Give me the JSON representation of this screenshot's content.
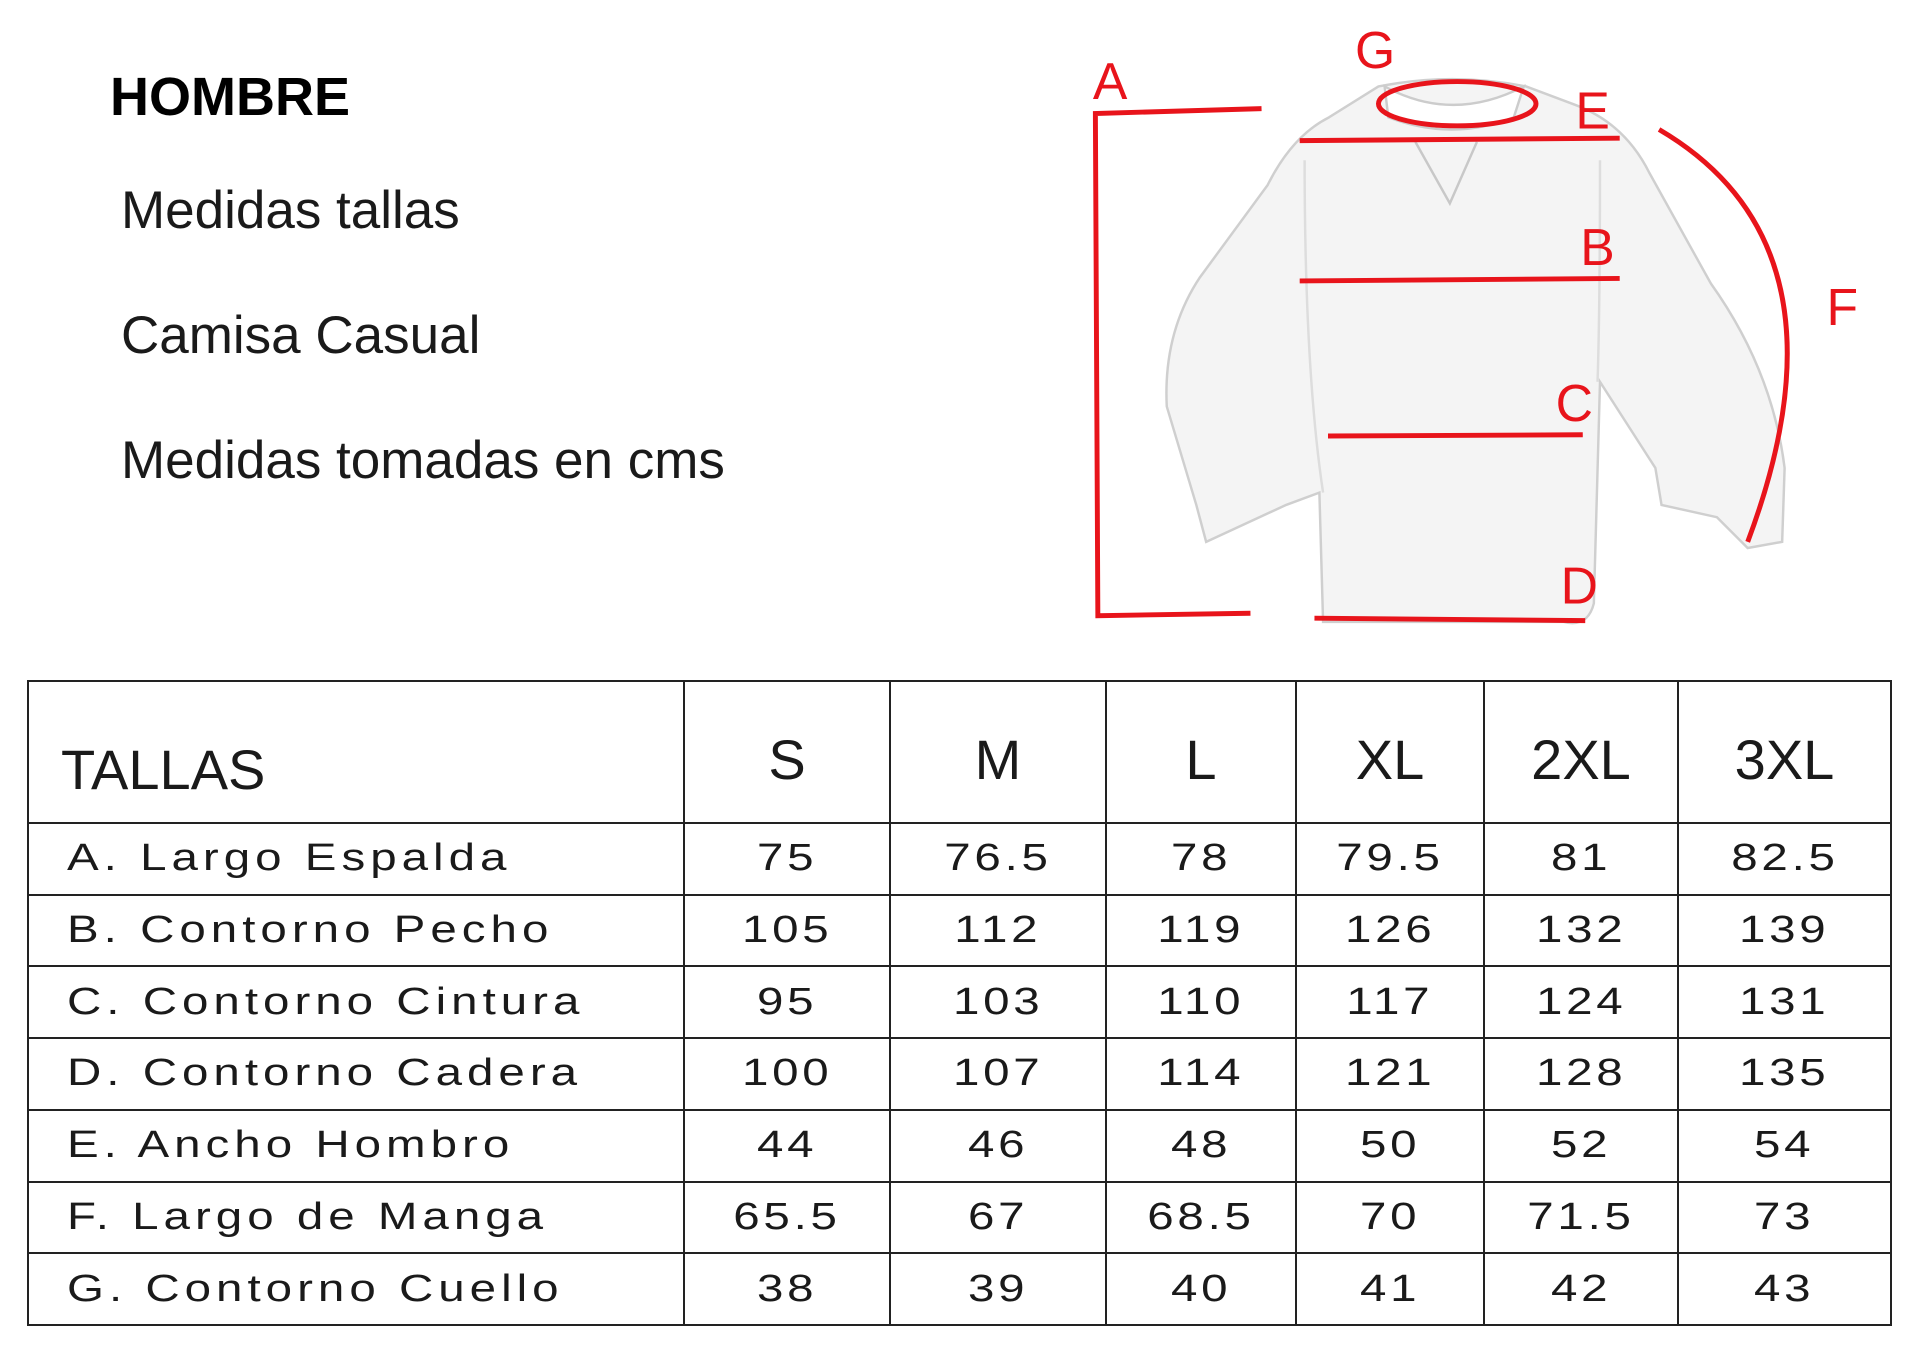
{
  "header": {
    "title": "HOMBRE",
    "lines": [
      "Medidas tallas",
      "Camisa Casual",
      "Medidas tomadas en cms"
    ]
  },
  "diagram": {
    "labels": [
      "A",
      "B",
      "C",
      "D",
      "E",
      "F",
      "G"
    ],
    "line_color": "#e8141b"
  },
  "table": {
    "header": [
      "TALLAS",
      "S",
      "M",
      "L",
      "XL",
      "2XL",
      "3XL"
    ],
    "rows": [
      {
        "label": "A. Largo Espalda",
        "values": [
          "75",
          "76.5",
          "78",
          "79.5",
          "81",
          "82.5"
        ]
      },
      {
        "label": "B. Contorno Pecho",
        "values": [
          "105",
          "112",
          "119",
          "126",
          "132",
          "139"
        ]
      },
      {
        "label": "C. Contorno Cintura",
        "values": [
          "95",
          "103",
          "110",
          "117",
          "124",
          "131"
        ]
      },
      {
        "label": "D. Contorno Cadera",
        "values": [
          "100",
          "107",
          "114",
          "121",
          "128",
          "135"
        ]
      },
      {
        "label": "E. Ancho Hombro",
        "values": [
          "44",
          "46",
          "48",
          "50",
          "52",
          "54"
        ]
      },
      {
        "label": "F. Largo de Manga",
        "values": [
          "65.5",
          "67",
          "68.5",
          "70",
          "71.5",
          "73"
        ]
      },
      {
        "label": "G. Contorno Cuello",
        "values": [
          "38",
          "39",
          "40",
          "41",
          "42",
          "43"
        ]
      }
    ]
  }
}
